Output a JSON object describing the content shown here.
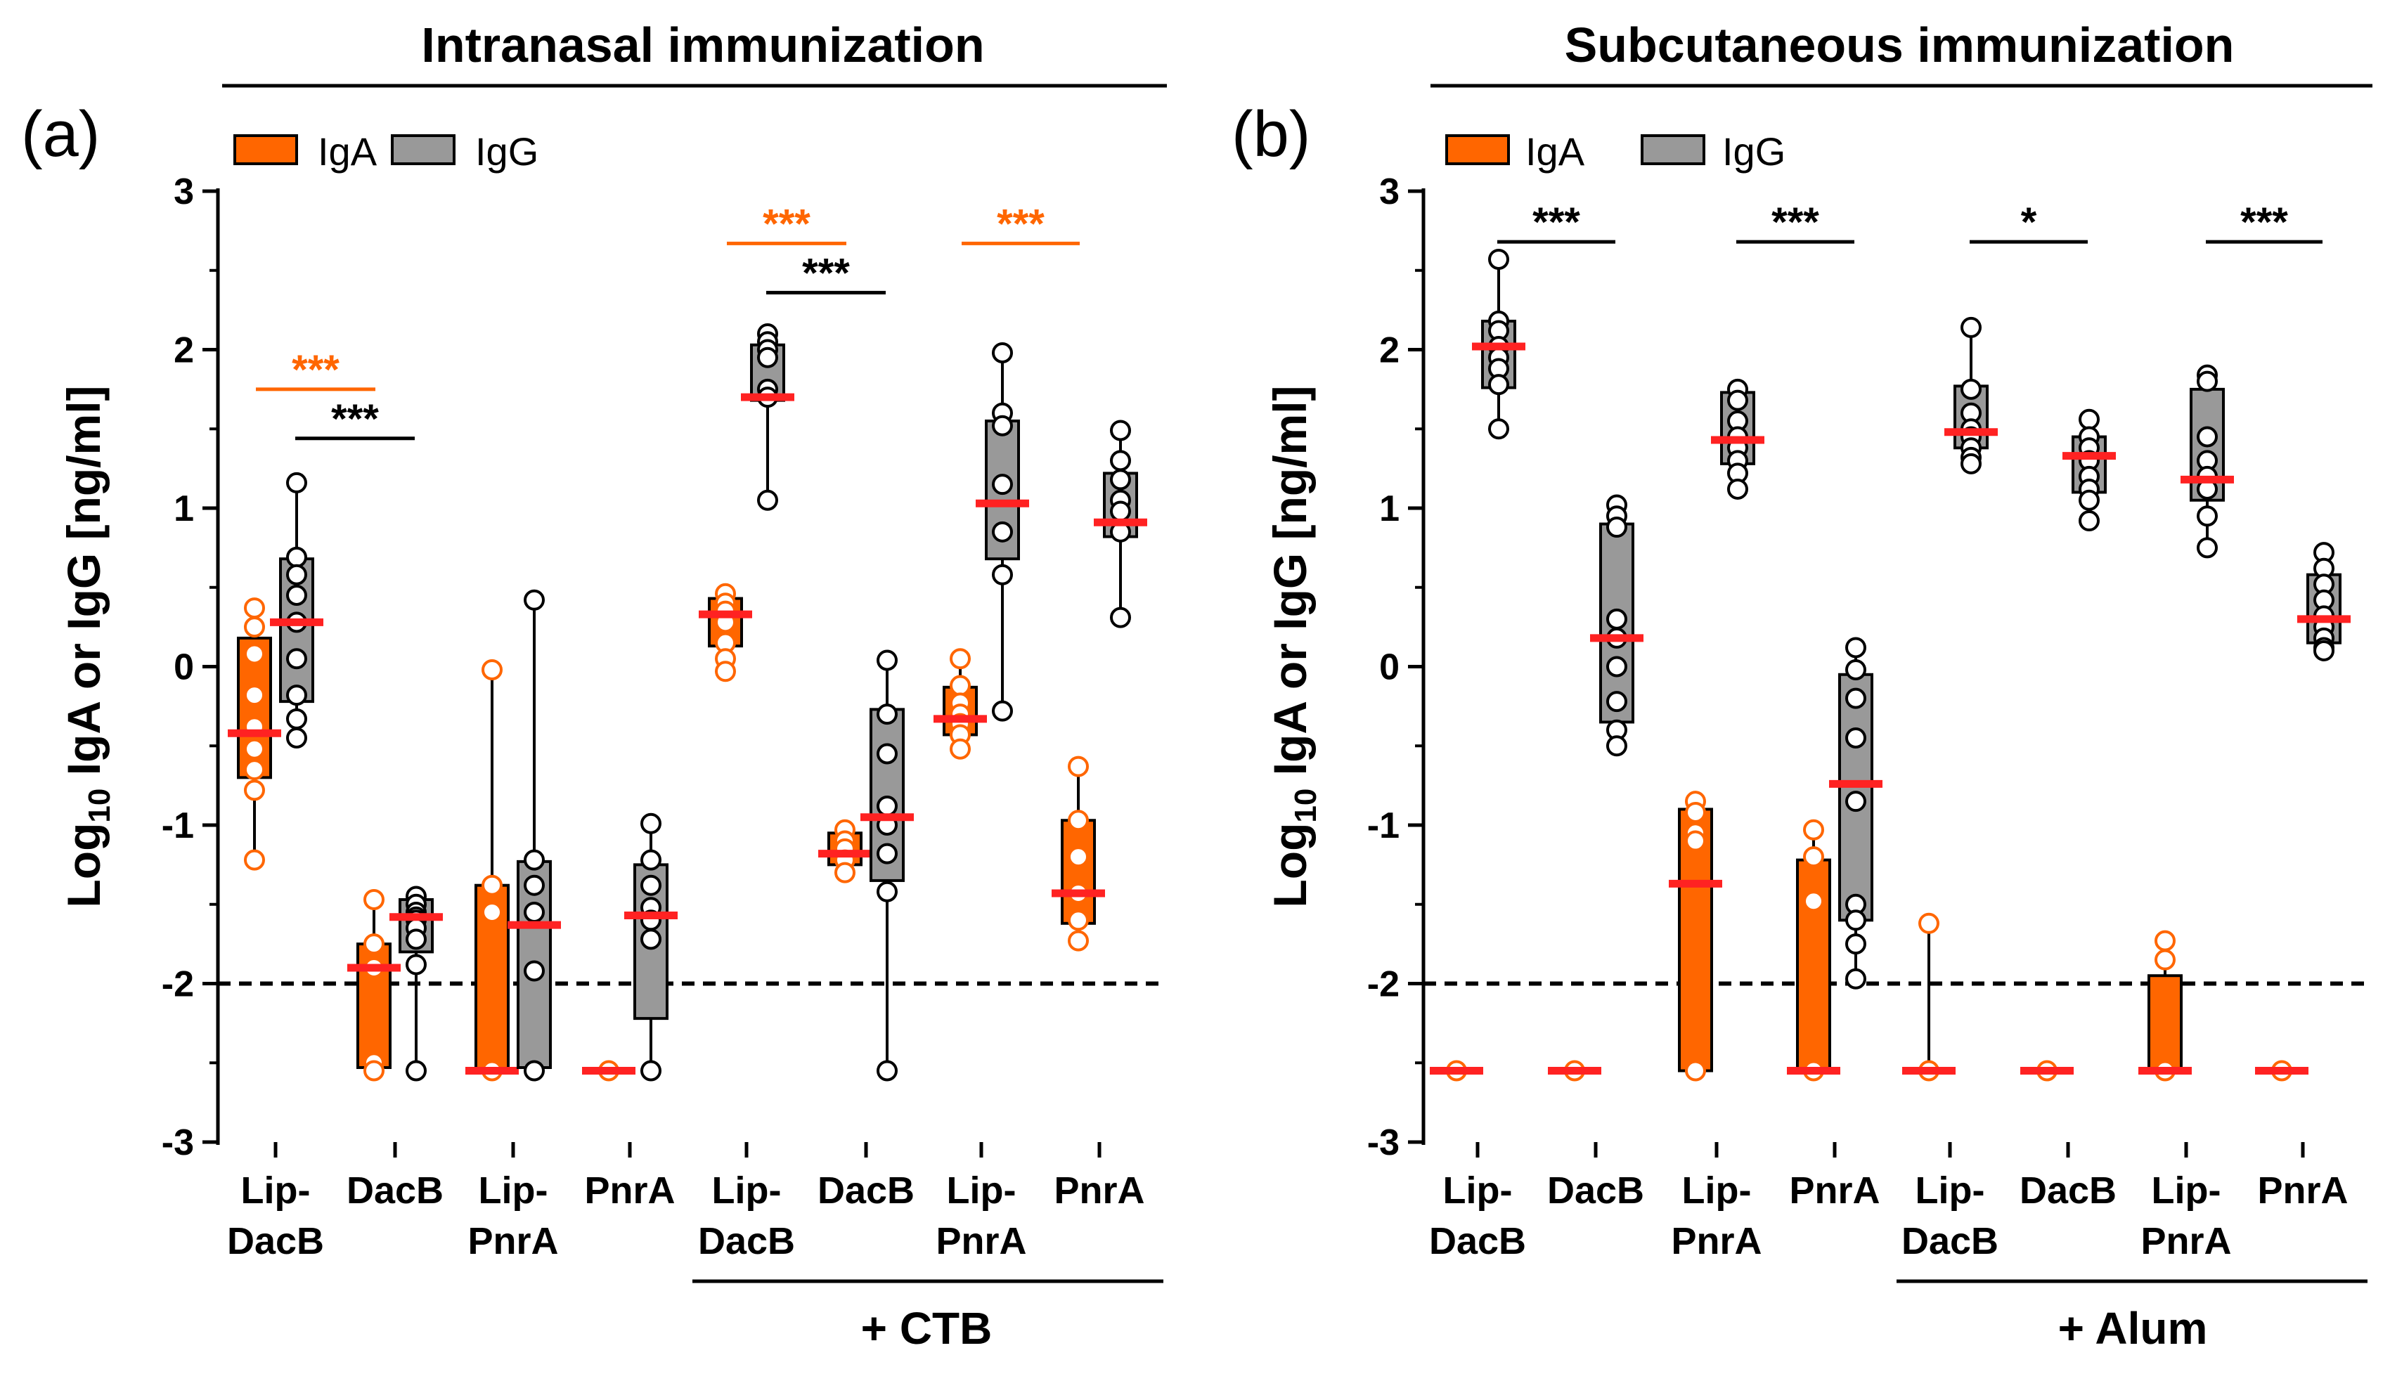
{
  "colors": {
    "iga": "#ff6600",
    "igg": "#999999",
    "median": "#ff2222",
    "stroke": "#000000",
    "iga_significance": "#ff6600",
    "igg_significance": "#000000"
  },
  "ylabel_main": "Log",
  "ylabel_sub": "10",
  "ylabel_rest": " IgA or IgG [ng/ml]",
  "legend": {
    "iga": "IgA",
    "igg": "IgG"
  },
  "chart_data": [
    {
      "type": "box",
      "panel_label": "(a)",
      "title": "Intranasal immunization",
      "ylim": [
        -3,
        3
      ],
      "yticks": [
        "3",
        "2",
        "1",
        "0",
        "-1",
        "-2",
        "-3"
      ],
      "detection_limit": -2,
      "adjuvant_label": "+ CTB",
      "categories": [
        {
          "line1": "Lip-",
          "line2": "DacB"
        },
        {
          "line1": "DacB",
          "line2": ""
        },
        {
          "line1": "Lip-",
          "line2": "PnrA"
        },
        {
          "line1": "PnrA",
          "line2": ""
        },
        {
          "line1": "Lip-",
          "line2": "DacB"
        },
        {
          "line1": "DacB",
          "line2": ""
        },
        {
          "line1": "Lip-",
          "line2": "PnrA"
        },
        {
          "line1": "PnrA",
          "line2": ""
        }
      ],
      "adjuvant_groups": [
        4,
        7
      ],
      "series": [
        {
          "name": "IgA",
          "boxes": [
            {
              "min": -1.22,
              "q1": -0.7,
              "median": -0.42,
              "q3": 0.18,
              "max": 0.37,
              "points": [
                0.37,
                0.25,
                0.08,
                -0.18,
                -0.38,
                -0.52,
                -0.65,
                -0.78,
                -1.22
              ]
            },
            {
              "min": -2.55,
              "q1": -2.53,
              "median": -1.9,
              "q3": -1.75,
              "max": -1.47,
              "points": [
                -1.47,
                -1.75,
                -1.9,
                -2.5,
                -2.55
              ]
            },
            {
              "min": -2.55,
              "q1": -2.55,
              "median": -2.55,
              "q3": -1.38,
              "max": -0.02,
              "points": [
                -0.02,
                -1.38,
                -1.55,
                -2.55
              ]
            },
            {
              "min": -2.55,
              "q1": -2.55,
              "median": -2.55,
              "q3": -2.55,
              "max": -2.55,
              "points": [
                -2.55
              ]
            },
            {
              "min": -0.03,
              "q1": 0.13,
              "median": 0.33,
              "q3": 0.43,
              "max": 0.46,
              "points": [
                0.46,
                0.4,
                0.35,
                0.28,
                0.15,
                0.05,
                -0.03
              ]
            },
            {
              "min": -1.3,
              "q1": -1.25,
              "median": -1.18,
              "q3": -1.05,
              "max": -1.03,
              "points": [
                -1.03,
                -1.1,
                -1.15,
                -1.22,
                -1.3
              ]
            },
            {
              "min": -0.52,
              "q1": -0.43,
              "median": -0.33,
              "q3": -0.13,
              "max": 0.05,
              "points": [
                0.05,
                -0.12,
                -0.23,
                -0.3,
                -0.36,
                -0.43,
                -0.52
              ]
            },
            {
              "min": -1.73,
              "q1": -1.62,
              "median": -1.43,
              "q3": -0.97,
              "max": -0.63,
              "points": [
                -0.63,
                -0.97,
                -1.2,
                -1.43,
                -1.6,
                -1.73
              ]
            }
          ]
        },
        {
          "name": "IgG",
          "boxes": [
            {
              "min": -0.45,
              "q1": -0.22,
              "median": 0.28,
              "q3": 0.68,
              "max": 1.16,
              "points": [
                1.16,
                0.69,
                0.58,
                0.45,
                0.28,
                0.05,
                -0.18,
                -0.33,
                -0.45
              ]
            },
            {
              "min": -2.55,
              "q1": -1.8,
              "median": -1.58,
              "q3": -1.47,
              "max": -1.45,
              "points": [
                -1.45,
                -1.5,
                -1.55,
                -1.58,
                -1.6,
                -1.65,
                -1.72,
                -1.88,
                -2.55
              ]
            },
            {
              "min": -2.55,
              "q1": -2.53,
              "median": -1.63,
              "q3": -1.23,
              "max": 0.42,
              "points": [
                0.42,
                -1.22,
                -1.38,
                -1.55,
                -1.92,
                -2.55
              ]
            },
            {
              "min": -2.55,
              "q1": -2.22,
              "median": -1.57,
              "q3": -1.25,
              "max": -0.99,
              "points": [
                -0.99,
                -1.22,
                -1.38,
                -1.52,
                -1.6,
                -1.72,
                -2.55
              ]
            },
            {
              "min": 1.05,
              "q1": 1.68,
              "median": 1.7,
              "q3": 2.03,
              "max": 2.1,
              "points": [
                2.1,
                2.05,
                2.0,
                1.95,
                1.75,
                1.7,
                1.05
              ]
            },
            {
              "min": -2.55,
              "q1": -1.35,
              "median": -0.95,
              "q3": -0.27,
              "max": 0.04,
              "points": [
                0.04,
                -0.3,
                -0.55,
                -0.88,
                -1.0,
                -1.18,
                -1.42,
                -2.55
              ]
            },
            {
              "min": -0.28,
              "q1": 0.68,
              "median": 1.03,
              "q3": 1.55,
              "max": 1.98,
              "points": [
                1.98,
                1.6,
                1.52,
                1.15,
                0.85,
                0.58,
                -0.28
              ]
            },
            {
              "min": 0.31,
              "q1": 0.82,
              "median": 0.91,
              "q3": 1.22,
              "max": 1.49,
              "points": [
                1.49,
                1.3,
                1.18,
                1.05,
                0.98,
                0.85,
                0.31
              ]
            }
          ]
        }
      ],
      "significance": [
        {
          "label": "***",
          "series": "IgA",
          "from": 0,
          "to": 1,
          "y": 1.75
        },
        {
          "label": "***",
          "series": "IgG",
          "from": 0,
          "to": 1,
          "y": 1.44
        },
        {
          "label": "***",
          "series": "IgA",
          "from": 4,
          "to": 5,
          "y": 2.67
        },
        {
          "label": "***",
          "series": "IgG",
          "from": 4,
          "to": 5,
          "y": 2.36
        },
        {
          "label": "***",
          "series": "IgA",
          "from": 6,
          "to": 7,
          "y": 2.67
        }
      ]
    },
    {
      "type": "box",
      "panel_label": "(b)",
      "title": "Subcutaneous immunization",
      "ylim": [
        -3,
        3
      ],
      "yticks": [
        "3",
        "2",
        "1",
        "0",
        "-1",
        "-2",
        "-3"
      ],
      "detection_limit": -2,
      "adjuvant_label": "+ Alum",
      "categories": [
        {
          "line1": "Lip-",
          "line2": "DacB"
        },
        {
          "line1": "DacB",
          "line2": ""
        },
        {
          "line1": "Lip-",
          "line2": "PnrA"
        },
        {
          "line1": "PnrA",
          "line2": ""
        },
        {
          "line1": "Lip-",
          "line2": "DacB"
        },
        {
          "line1": "DacB",
          "line2": ""
        },
        {
          "line1": "Lip-",
          "line2": "PnrA"
        },
        {
          "line1": "PnrA",
          "line2": ""
        }
      ],
      "adjuvant_groups": [
        4,
        7
      ],
      "series": [
        {
          "name": "IgA",
          "boxes": [
            {
              "min": -2.55,
              "q1": -2.55,
              "median": -2.55,
              "q3": -2.55,
              "max": -2.55,
              "points": [
                -2.55
              ]
            },
            {
              "min": -2.55,
              "q1": -2.55,
              "median": -2.55,
              "q3": -2.55,
              "max": -2.55,
              "points": [
                -2.55
              ]
            },
            {
              "min": -2.55,
              "q1": -2.55,
              "median": -1.37,
              "q3": -0.9,
              "max": -0.85,
              "points": [
                -0.85,
                -0.92,
                -1.05,
                -1.1,
                -2.55
              ]
            },
            {
              "min": -2.55,
              "q1": -2.55,
              "median": -2.55,
              "q3": -1.22,
              "max": -1.03,
              "points": [
                -1.03,
                -1.2,
                -1.48,
                -2.55
              ]
            },
            {
              "min": -2.55,
              "q1": -2.55,
              "median": -2.55,
              "q3": -2.55,
              "max": -1.62,
              "points": [
                -1.62,
                -2.55
              ]
            },
            {
              "min": -2.55,
              "q1": -2.55,
              "median": -2.55,
              "q3": -2.55,
              "max": -2.55,
              "points": [
                -2.55
              ]
            },
            {
              "min": -2.55,
              "q1": -2.55,
              "median": -2.55,
              "q3": -1.95,
              "max": -1.73,
              "points": [
                -1.73,
                -1.85,
                -2.55
              ]
            },
            {
              "min": -2.55,
              "q1": -2.55,
              "median": -2.55,
              "q3": -2.55,
              "max": -2.55,
              "points": [
                -2.55
              ]
            }
          ]
        },
        {
          "name": "IgG",
          "boxes": [
            {
              "min": 1.5,
              "q1": 1.76,
              "median": 2.02,
              "q3": 2.18,
              "max": 2.57,
              "points": [
                2.57,
                2.18,
                2.12,
                2.02,
                1.95,
                1.88,
                1.78,
                1.5
              ]
            },
            {
              "min": -0.5,
              "q1": -0.35,
              "median": 0.18,
              "q3": 0.9,
              "max": 1.02,
              "points": [
                1.02,
                0.95,
                0.88,
                0.3,
                0.18,
                0.0,
                -0.22,
                -0.4,
                -0.5
              ]
            },
            {
              "min": 1.12,
              "q1": 1.28,
              "median": 1.43,
              "q3": 1.73,
              "max": 1.75,
              "points": [
                1.75,
                1.68,
                1.55,
                1.45,
                1.38,
                1.3,
                1.22,
                1.12
              ]
            },
            {
              "min": -1.97,
              "q1": -1.6,
              "median": -0.74,
              "q3": -0.05,
              "max": 0.12,
              "points": [
                0.12,
                -0.02,
                -0.2,
                -0.45,
                -0.85,
                -1.5,
                -1.6,
                -1.75,
                -1.97
              ]
            },
            {
              "min": 1.28,
              "q1": 1.38,
              "median": 1.48,
              "q3": 1.77,
              "max": 2.14,
              "points": [
                2.14,
                1.75,
                1.6,
                1.5,
                1.45,
                1.38,
                1.32,
                1.28
              ]
            },
            {
              "min": 0.92,
              "q1": 1.1,
              "median": 1.33,
              "q3": 1.45,
              "max": 1.56,
              "points": [
                1.56,
                1.45,
                1.38,
                1.3,
                1.2,
                1.12,
                1.05,
                0.92
              ]
            },
            {
              "min": 0.75,
              "q1": 1.05,
              "median": 1.18,
              "q3": 1.75,
              "max": 1.84,
              "points": [
                1.84,
                1.8,
                1.45,
                1.3,
                1.2,
                1.12,
                0.95,
                0.75
              ]
            },
            {
              "min": 0.1,
              "q1": 0.15,
              "median": 0.3,
              "q3": 0.58,
              "max": 0.72,
              "points": [
                0.72,
                0.62,
                0.52,
                0.42,
                0.32,
                0.25,
                0.18,
                0.12,
                0.1
              ]
            }
          ]
        }
      ],
      "significance": [
        {
          "label": "***",
          "series": "IgG",
          "from": 0,
          "to": 1,
          "y": 2.68
        },
        {
          "label": "***",
          "series": "IgG",
          "from": 2,
          "to": 3,
          "y": 2.68
        },
        {
          "label": "*",
          "series": "IgG",
          "from": 4,
          "to": 5,
          "y": 2.68
        },
        {
          "label": "***",
          "series": "IgG",
          "from": 6,
          "to": 7,
          "y": 2.68
        }
      ]
    }
  ]
}
